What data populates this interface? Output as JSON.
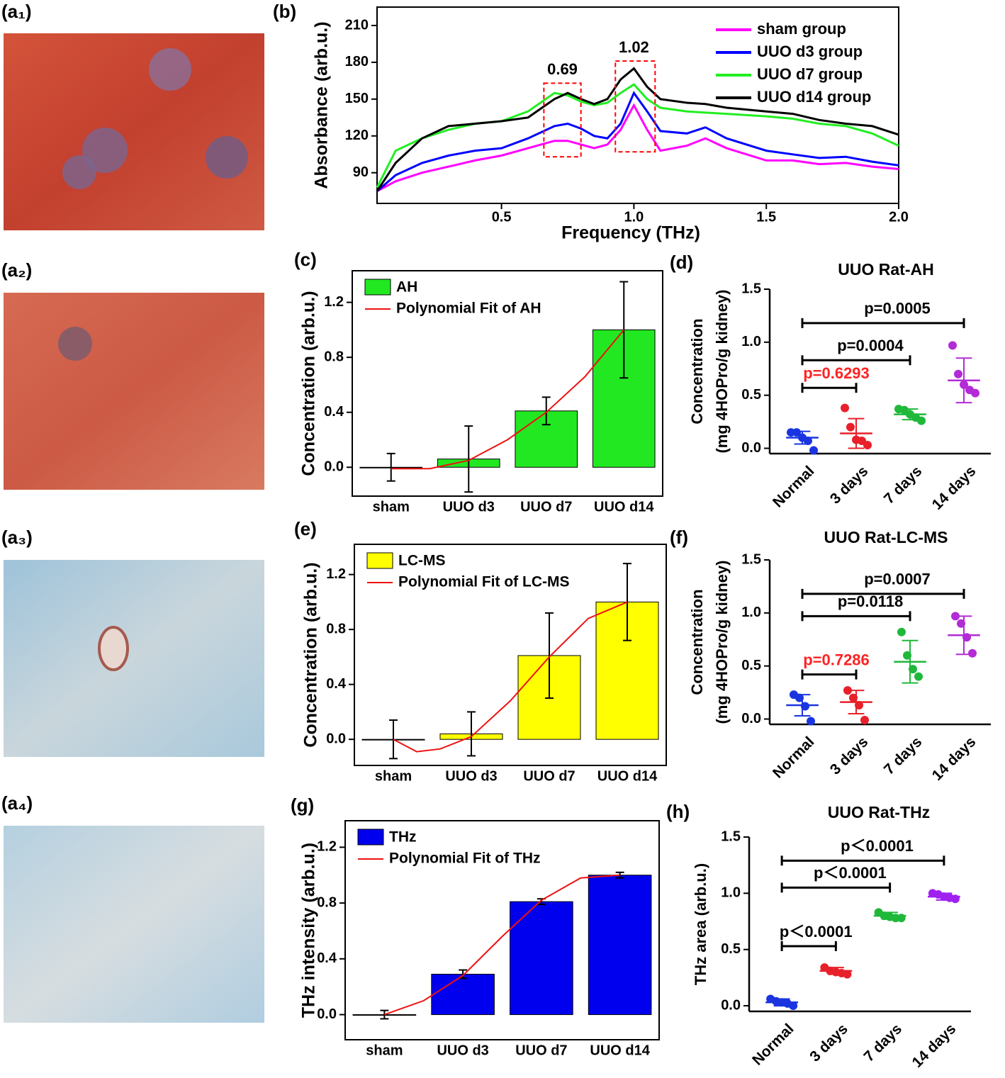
{
  "image_labels": [
    "(a₁)",
    "(a₂)",
    "(a₃)",
    "(a₄)"
  ],
  "chart_data": [
    {
      "type": "line",
      "label": "(b)",
      "xlabel": "Frequency (THz)",
      "ylabel": "Absorbance (arb.u.)",
      "xlim": [
        0.03,
        2.0
      ],
      "ylim": [
        65,
        225
      ],
      "xticks": [
        0.5,
        {
          "value": 1,
          "label": "1.0"
        },
        1.5,
        {
          "value": 2,
          "label": "2.0"
        }
      ],
      "yticks": [
        90,
        120,
        150,
        180,
        210
      ],
      "frame": true,
      "x": [
        0.03,
        0.1,
        0.2,
        0.3,
        0.4,
        0.5,
        0.6,
        0.7,
        0.75,
        0.8,
        0.85,
        0.9,
        0.95,
        1.0,
        1.05,
        1.1,
        1.2,
        1.27,
        1.35,
        1.5,
        1.6,
        1.7,
        1.8,
        1.9,
        2.0
      ],
      "series": [
        {
          "name": "sham group",
          "color": "#ff00ff",
          "values": [
            75,
            83,
            90,
            95,
            100,
            104,
            110,
            116,
            116,
            113,
            110,
            113,
            125,
            145,
            125,
            108,
            112,
            118,
            110,
            100,
            100,
            97,
            98,
            95,
            93
          ]
        },
        {
          "name": "UUO d3 group",
          "color": "#0000ff",
          "values": [
            75,
            88,
            98,
            104,
            108,
            110,
            118,
            128,
            130,
            126,
            120,
            118,
            130,
            155,
            140,
            124,
            122,
            127,
            118,
            108,
            105,
            102,
            103,
            99,
            96
          ]
        },
        {
          "name": "UUO d7 group",
          "color": "#22ee22",
          "values": [
            78,
            108,
            118,
            125,
            130,
            132,
            140,
            155,
            153,
            148,
            145,
            147,
            155,
            162,
            150,
            143,
            140,
            139,
            138,
            136,
            134,
            130,
            128,
            122,
            112
          ]
        },
        {
          "name": "UUO d14 group",
          "color": "#000000",
          "values": [
            75,
            98,
            118,
            128,
            130,
            132,
            135,
            150,
            155,
            150,
            146,
            150,
            166,
            175,
            160,
            150,
            147,
            146,
            143,
            140,
            138,
            133,
            130,
            128,
            121
          ]
        }
      ],
      "annotations": [
        {
          "text": "0.69",
          "x": 0.73,
          "xrange": [
            0.66,
            0.8
          ],
          "yrange": [
            103,
            163
          ],
          "color": "#ff0000"
        },
        {
          "text": "1.02",
          "x": 1.0,
          "xrange": [
            0.93,
            1.08
          ],
          "yrange": [
            107,
            181
          ],
          "color": "#ff0000"
        }
      ]
    },
    {
      "type": "bar",
      "label": "(c)",
      "ylabel": "Concentration (arb.u.)",
      "frame": true,
      "ylim": [
        -0.21,
        1.43
      ],
      "yticks": [
        {
          "value": 0,
          "label": "0.0"
        },
        0.4,
        0.8,
        1.2
      ],
      "categories": [
        "sham",
        "UUO d3",
        "UUO d7",
        "UUO d14"
      ],
      "series": [
        {
          "name": "AH",
          "color": "#22e822",
          "values": [
            0,
            0.06,
            0.41,
            1.0
          ],
          "errors": [
            0.1,
            0.24,
            0.1,
            0.35
          ]
        }
      ],
      "fit": {
        "name": "Polynomial Fit of AH",
        "color": "#ee1111",
        "x": [
          0,
          0.5,
          1,
          1.5,
          2,
          2.5,
          3
        ],
        "values": [
          -0.01,
          -0.01,
          0.05,
          0.2,
          0.4,
          0.66,
          1.0
        ]
      }
    },
    {
      "type": "scatter",
      "label": "(d)",
      "title": "UUO Rat-AH",
      "ylabel": [
        "Concentration",
        "(mg 4HOPro/g kidney)"
      ],
      "ylim": [
        -0.05,
        1.5
      ],
      "yticks": [
        {
          "value": 0,
          "label": "0.0"
        },
        0.5,
        {
          "value": 1,
          "label": "1.0"
        },
        1.5
      ],
      "categories": [
        "Normal",
        "3 days",
        "7 days",
        "14 days"
      ],
      "colors": [
        "#1a35e0",
        "#e8202a",
        "#1fb83a",
        "#b32bd6"
      ],
      "points": [
        [
          0.15,
          0.15,
          0.1,
          0.07,
          -0.02
        ],
        [
          0.38,
          0.2,
          0.08,
          0.07,
          0.03
        ],
        [
          0.37,
          0.36,
          0.32,
          0.29,
          0.26
        ],
        [
          0.97,
          0.7,
          0.6,
          0.55,
          0.52
        ]
      ],
      "means": [
        0.1,
        0.14,
        0.32,
        0.64
      ],
      "sds": [
        0.06,
        0.14,
        0.05,
        0.21
      ],
      "brackets": [
        {
          "label": "p=0.6293",
          "from": "Normal",
          "to": "3 days",
          "y": 0.57,
          "color": "#ff2222"
        },
        {
          "label": "p=0.0004",
          "from": "Normal",
          "to": "7 days",
          "y": 0.83,
          "color": "#000000"
        },
        {
          "label": "p=0.0005",
          "from": "Normal",
          "to": "14 days",
          "y": 1.18,
          "color": "#000000"
        }
      ]
    },
    {
      "type": "bar",
      "label": "(e)",
      "ylabel": "Concentration (arb.u.)",
      "frame": true,
      "ylim": [
        -0.19,
        1.42
      ],
      "yticks": [
        {
          "value": 0,
          "label": "0.0"
        },
        0.4,
        0.8,
        1.2
      ],
      "categories": [
        "sham",
        "UUO d3",
        "UUO d7",
        "UUO d14"
      ],
      "series": [
        {
          "name": "LC-MS",
          "color": "#ffff00",
          "values": [
            0,
            0.04,
            0.61,
            1.0
          ],
          "errors": [
            0.14,
            0.16,
            0.31,
            0.28
          ]
        }
      ],
      "fit": {
        "name": "Polynomial Fit of LC-MS",
        "color": "#ee1111",
        "x": [
          0,
          0.3,
          0.6,
          1,
          1.5,
          2,
          2.5,
          3
        ],
        "values": [
          0,
          -0.09,
          -0.07,
          0.02,
          0.28,
          0.6,
          0.88,
          1.0
        ]
      }
    },
    {
      "type": "scatter",
      "label": "(f)",
      "title": "UUO Rat-LC-MS",
      "ylabel": [
        "Concentration",
        "(mg 4HOPro/g kidney)"
      ],
      "ylim": [
        -0.05,
        1.5
      ],
      "yticks": [
        {
          "value": 0,
          "label": "0.0"
        },
        0.5,
        {
          "value": 1,
          "label": "1.0"
        },
        1.5
      ],
      "categories": [
        "Normal",
        "3 days",
        "7 days",
        "14 days"
      ],
      "colors": [
        "#1a35e0",
        "#e8202a",
        "#1fb83a",
        "#b32bd6"
      ],
      "points": [
        [
          0.23,
          0.2,
          0.12,
          -0.02
        ],
        [
          0.27,
          0.2,
          0.13,
          -0.01
        ],
        [
          0.82,
          0.6,
          0.47,
          0.4
        ],
        [
          0.97,
          0.9,
          0.77,
          0.62
        ]
      ],
      "means": [
        0.13,
        0.16,
        0.54,
        0.79
      ],
      "sds": [
        0.1,
        0.11,
        0.2,
        0.18
      ],
      "brackets": [
        {
          "label": "p=0.7286",
          "from": "Normal",
          "to": "3 days",
          "y": 0.42,
          "color": "#ff2222"
        },
        {
          "label": "p=0.0118",
          "from": "Normal",
          "to": "7 days",
          "y": 0.97,
          "color": "#000000"
        },
        {
          "label": "p=0.0007",
          "from": "Normal",
          "to": "14 days",
          "y": 1.18,
          "color": "#000000"
        }
      ]
    },
    {
      "type": "bar",
      "label": "(g)",
      "ylabel": "THz intensity (arb.u.)",
      "frame": true,
      "ylim": [
        -0.18,
        1.39
      ],
      "yticks": [
        {
          "value": 0,
          "label": "0.0"
        },
        0.4,
        0.8,
        1.2
      ],
      "categories": [
        "sham",
        "UUO d3",
        "UUO d7",
        "UUO d14"
      ],
      "series": [
        {
          "name": "THz",
          "color": "#0000ee",
          "values": [
            0,
            0.29,
            0.81,
            1.0
          ],
          "errors": [
            0.03,
            0.03,
            0.02,
            0.02
          ]
        }
      ],
      "fit": {
        "name": "Polynomial Fit of THz",
        "color": "#ee1111",
        "x": [
          0,
          0.5,
          1,
          1.5,
          2,
          2.5,
          3
        ],
        "values": [
          0,
          0.1,
          0.28,
          0.56,
          0.82,
          0.98,
          1.0
        ]
      }
    },
    {
      "type": "scatter",
      "label": "(h)",
      "title": "UUO Rat-THz",
      "ylabel": [
        "THz area (arb.u.)"
      ],
      "ylim": [
        -0.05,
        1.5
      ],
      "yticks": [
        {
          "value": 0,
          "label": "0.0"
        },
        0.5,
        {
          "value": 1,
          "label": "1.0"
        },
        1.5
      ],
      "categories": [
        "Normal",
        "3 days",
        "7 days",
        "14 days"
      ],
      "colors": [
        "#1a35e0",
        "#e8202a",
        "#1fb83a",
        "#a020f0"
      ],
      "points": [
        [
          0.06,
          0.04,
          0.03,
          0.02,
          0.0
        ],
        [
          0.34,
          0.31,
          0.3,
          0.29,
          0.28
        ],
        [
          0.83,
          0.8,
          0.79,
          0.78,
          0.78
        ],
        [
          1.0,
          0.99,
          0.97,
          0.96,
          0.95
        ]
      ],
      "means": [
        0.03,
        0.31,
        0.8,
        0.97
      ],
      "sds": [
        0.03,
        0.03,
        0.03,
        0.03
      ],
      "brackets": [
        {
          "label": "p＜0.0001",
          "from": "Normal",
          "to": "3 days",
          "y": 0.53,
          "color": "#000000"
        },
        {
          "label": "p＜0.0001",
          "from": "Normal",
          "to": "7 days",
          "y": 1.05,
          "color": "#000000"
        },
        {
          "label": "p＜0.0001",
          "from": "Normal",
          "to": "14 days",
          "y": 1.29,
          "color": "#000000"
        }
      ]
    }
  ]
}
